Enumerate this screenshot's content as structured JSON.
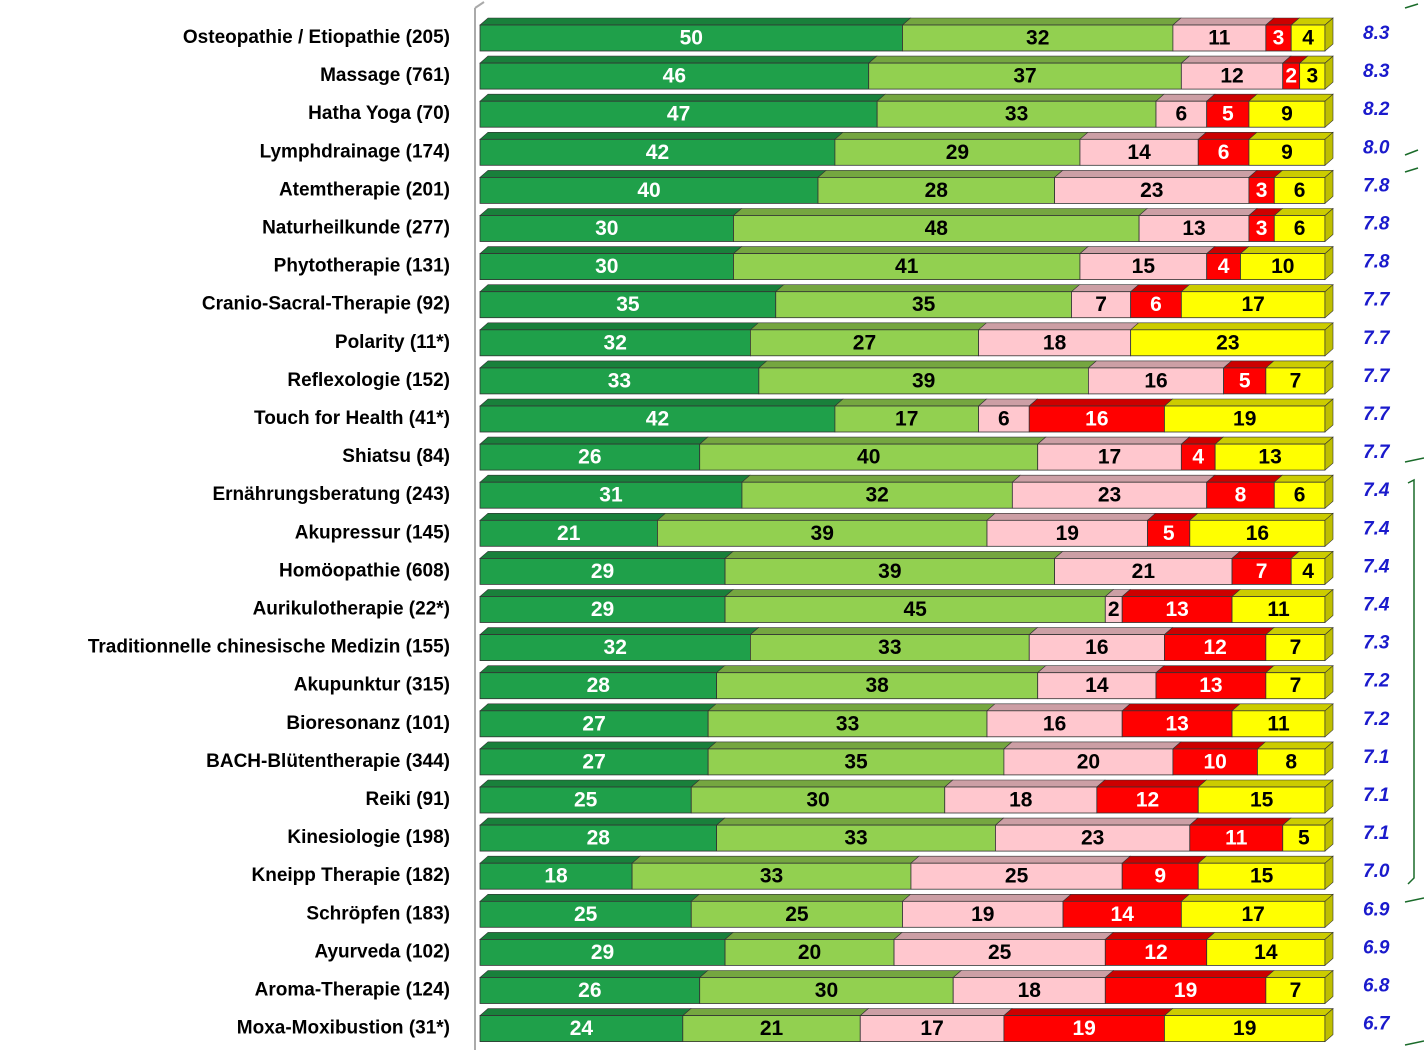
{
  "chart_data": {
    "type": "stacked-bar-horizontal",
    "categories": [
      "Osteopathie / Etiopathie (205)",
      "Massage (761)",
      "Hatha Yoga  (70)",
      "Lymphdrainage (174)",
      "Atemtherapie (201)",
      "Naturheilkunde (277)",
      "Phytotherapie (131)",
      "Cranio-Sacral-Therapie (92)",
      "Polarity (11*)",
      "Reflexologie (152)",
      "Touch for Health (41*)",
      "Shiatsu (84)",
      "Ernährungsberatung (243)",
      "Akupressur (145)",
      "Homöopathie (608)",
      "Aurikulotherapie (22*)",
      "Traditionnelle chinesische Medizin (155)",
      "Akupunktur (315)",
      "Bioresonanz (101)",
      "BACH-Blütentherapie (344)",
      "Reiki (91)",
      "Kinesiologie (198)",
      "Kneipp Therapie (182)",
      "Schröpfen (183)",
      "Ayurveda (102)",
      "Aroma-Therapie (124)",
      "Moxa-Moxibustion (31*)"
    ],
    "series": [
      {
        "color": "#1fa04a",
        "values": [
          50,
          46,
          47,
          42,
          40,
          30,
          30,
          35,
          32,
          33,
          42,
          26,
          31,
          21,
          29,
          29,
          32,
          28,
          27,
          27,
          25,
          28,
          18,
          25,
          29,
          26,
          24
        ]
      },
      {
        "color": "#92d050",
        "values": [
          32,
          37,
          33,
          29,
          28,
          48,
          41,
          35,
          27,
          39,
          17,
          40,
          32,
          39,
          39,
          45,
          33,
          38,
          33,
          35,
          30,
          33,
          33,
          25,
          20,
          30,
          21
        ]
      },
      {
        "color": "#ffc7ce",
        "values": [
          11,
          12,
          6,
          14,
          23,
          13,
          15,
          7,
          18,
          16,
          6,
          17,
          23,
          19,
          21,
          2,
          16,
          14,
          16,
          20,
          18,
          23,
          25,
          19,
          25,
          18,
          17
        ]
      },
      {
        "color": "#ff0000",
        "values": [
          3,
          2,
          5,
          6,
          3,
          3,
          4,
          6,
          null,
          5,
          16,
          4,
          8,
          5,
          7,
          13,
          12,
          13,
          13,
          10,
          12,
          11,
          9,
          14,
          12,
          19,
          19
        ]
      },
      {
        "color": "#ffff00",
        "values": [
          4,
          3,
          9,
          9,
          6,
          6,
          10,
          17,
          23,
          7,
          19,
          13,
          6,
          16,
          4,
          11,
          7,
          7,
          11,
          8,
          15,
          5,
          15,
          17,
          14,
          7,
          19
        ]
      }
    ],
    "scores": [
      8.3,
      8.3,
      8.2,
      8.0,
      7.8,
      7.8,
      7.8,
      7.7,
      7.7,
      7.7,
      7.7,
      7.7,
      7.4,
      7.4,
      7.4,
      7.4,
      7.3,
      7.2,
      7.2,
      7.1,
      7.1,
      7.1,
      7.0,
      6.9,
      6.9,
      6.8,
      6.7
    ],
    "score_labels": [
      "8.3",
      "8.3",
      "8.2",
      "8.0",
      "7.8",
      "7.8",
      "7.8",
      "7.7",
      "7.7",
      "7.7",
      "7.7",
      "7.7",
      "7.4",
      "7.4",
      "7.4",
      "7.4",
      "7.3",
      "7.2",
      "7.2",
      "7.1",
      "7.1",
      "7.1",
      "7.0",
      "6.9",
      "6.9",
      "6.8",
      "6.7"
    ],
    "xlim": [
      0,
      100
    ]
  }
}
